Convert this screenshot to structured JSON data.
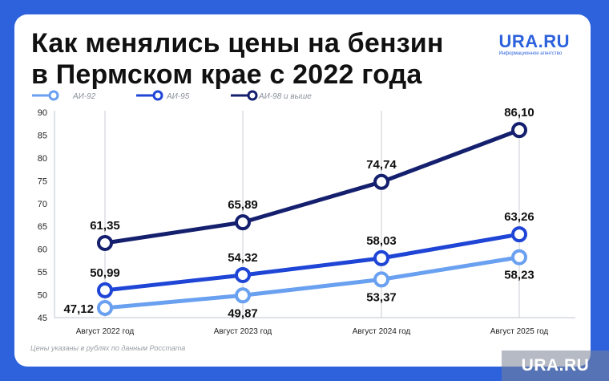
{
  "header": {
    "title_line1": "Как менялись цены на бензин",
    "title_line2": "в Пермском крае с 2022 года"
  },
  "logo": {
    "name": "URA.RU",
    "subtitle": "Информационное агентство"
  },
  "footnote": "Цены указаны в рублях по данным Росстата",
  "watermark": "URA.RU",
  "colors": {
    "background": "#2d62dc",
    "card": "#ffffff"
  },
  "chart_data": {
    "type": "line",
    "categories": [
      "Август 2022 год",
      "Август 2023 год",
      "Август 2024 год",
      "Август 2025 год"
    ],
    "ylim": [
      45,
      90
    ],
    "yticks": [
      45,
      50,
      55,
      60,
      65,
      70,
      75,
      80,
      85,
      90
    ],
    "grid": false,
    "legend_position": "top-left",
    "series": [
      {
        "name": "АИ-92",
        "color": "#6aa0f0",
        "values": [
          47.12,
          49.87,
          53.37,
          58.23
        ],
        "labels": [
          "47,12",
          "49,87",
          "53,37",
          "58,23"
        ],
        "label_pos": [
          "left",
          "below",
          "below",
          "below"
        ]
      },
      {
        "name": "АИ-95",
        "color": "#1f45d6",
        "values": [
          50.99,
          54.32,
          58.03,
          63.26
        ],
        "labels": [
          "50,99",
          "54,32",
          "58,03",
          "63,26"
        ],
        "label_pos": [
          "above",
          "above",
          "above",
          "above"
        ]
      },
      {
        "name": "АИ-98 и выше",
        "color": "#141f6e",
        "values": [
          61.35,
          65.89,
          74.74,
          86.1
        ],
        "labels": [
          "61,35",
          "65,89",
          "74,74",
          "86,10"
        ],
        "label_pos": [
          "above",
          "above",
          "above",
          "above"
        ]
      }
    ]
  }
}
